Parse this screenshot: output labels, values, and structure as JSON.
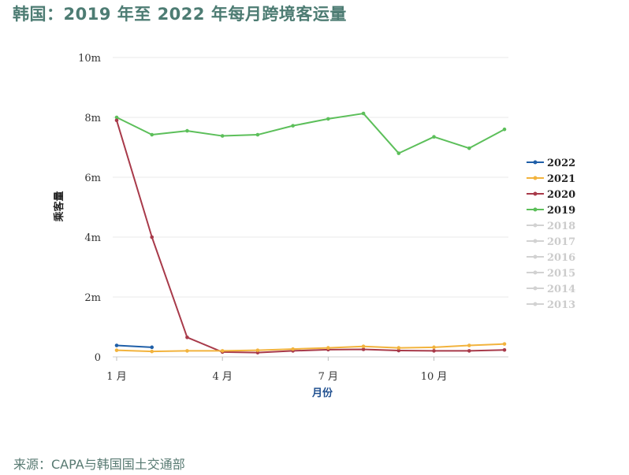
{
  "title": "韩国：2019 年至 2022 年每月跨境客运量",
  "source": "来源：CAPA与韩国国土交通部",
  "chart_data": {
    "type": "line",
    "ylabel": "乘客量",
    "xlabel": "月份",
    "ylim": [
      0,
      10
    ],
    "yticks": [
      0,
      2,
      4,
      6,
      8,
      10
    ],
    "ytick_labels": [
      "0",
      "2m",
      "4m",
      "6m",
      "8m",
      "10m"
    ],
    "xlim": [
      1,
      12
    ],
    "xticks": [
      1,
      4,
      7,
      10
    ],
    "xtick_labels": [
      "1 月",
      "4 月",
      "7 月",
      "10 月"
    ],
    "grid": true,
    "legend_position": "right",
    "series": [
      {
        "name": "2022",
        "color": "#1f5fa8",
        "active": true,
        "x": [
          1,
          2
        ],
        "values": [
          0.38,
          0.32
        ]
      },
      {
        "name": "2021",
        "color": "#f2b33d",
        "active": true,
        "x": [
          1,
          2,
          3,
          4,
          5,
          6,
          7,
          8,
          9,
          10,
          11,
          12
        ],
        "values": [
          0.22,
          0.18,
          0.2,
          0.2,
          0.22,
          0.26,
          0.3,
          0.35,
          0.3,
          0.32,
          0.38,
          0.43
        ]
      },
      {
        "name": "2020",
        "color": "#a83a4a",
        "active": true,
        "x": [
          1,
          2,
          3,
          4,
          5,
          6,
          7,
          8,
          9,
          10,
          11,
          12
        ],
        "values": [
          7.9,
          4.0,
          0.65,
          0.16,
          0.14,
          0.2,
          0.24,
          0.25,
          0.21,
          0.2,
          0.2,
          0.23
        ]
      },
      {
        "name": "2019",
        "color": "#5cbf5a",
        "active": true,
        "x": [
          1,
          2,
          3,
          4,
          5,
          6,
          7,
          8,
          9,
          10,
          11,
          12
        ],
        "values": [
          8.0,
          7.42,
          7.55,
          7.38,
          7.42,
          7.72,
          7.95,
          8.13,
          6.8,
          7.35,
          6.97,
          7.6
        ]
      },
      {
        "name": "2018",
        "color": "#cccccc",
        "active": false,
        "values": []
      },
      {
        "name": "2017",
        "color": "#cccccc",
        "active": false,
        "values": []
      },
      {
        "name": "2016",
        "color": "#cccccc",
        "active": false,
        "values": []
      },
      {
        "name": "2015",
        "color": "#cccccc",
        "active": false,
        "values": []
      },
      {
        "name": "2014",
        "color": "#cccccc",
        "active": false,
        "values": []
      },
      {
        "name": "2013",
        "color": "#cccccc",
        "active": false,
        "values": []
      }
    ]
  }
}
